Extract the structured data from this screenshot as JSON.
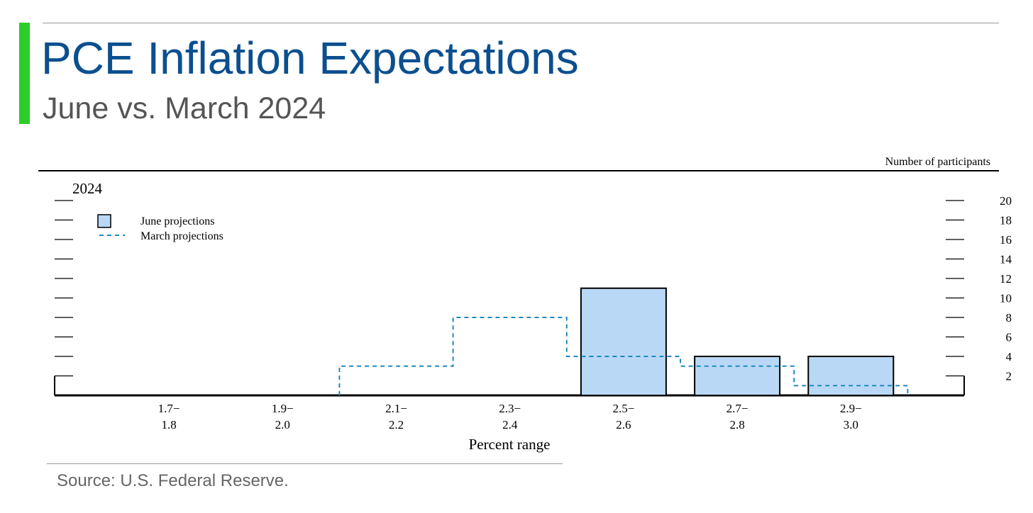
{
  "header": {
    "title": "PCE Inflation Expectations",
    "subtitle": "June vs. March 2024"
  },
  "source": "Source: U.S. Federal Reserve.",
  "colors": {
    "accent": "#2ecc27",
    "title": "#0b4f8f",
    "bar_fill": "#b8d8f5",
    "march_line": "#1f8ac0"
  },
  "chart_data": {
    "type": "bar",
    "panel_label": "2024",
    "xlabel": "Percent range",
    "ylabel": "Number of participants",
    "categories": [
      [
        "1.7−",
        "1.8"
      ],
      [
        "1.9−",
        "2.0"
      ],
      [
        "2.1−",
        "2.2"
      ],
      [
        "2.3−",
        "2.4"
      ],
      [
        "2.5−",
        "2.6"
      ],
      [
        "2.7−",
        "2.8"
      ],
      [
        "2.9−",
        "3.0"
      ]
    ],
    "ylim": [
      0,
      20
    ],
    "yticks": [
      2,
      4,
      6,
      8,
      10,
      12,
      14,
      16,
      18,
      20
    ],
    "series": [
      {
        "name": "June projections",
        "style": "bar",
        "values": [
          0,
          0,
          0,
          0,
          11,
          4,
          4
        ]
      },
      {
        "name": "March projections",
        "style": "dashed-step",
        "values": [
          0,
          0,
          3,
          8,
          4,
          3,
          1
        ]
      }
    ],
    "legend": "top-left",
    "grid": false
  }
}
